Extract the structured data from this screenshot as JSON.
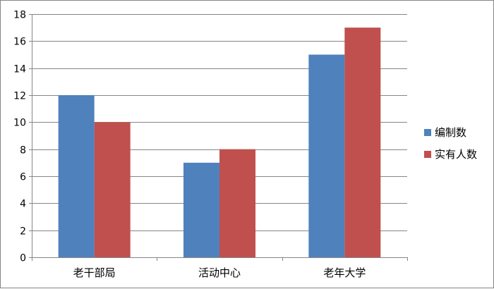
{
  "chart_data": {
    "type": "bar",
    "categories": [
      "老干部局",
      "活动中心",
      "老年大学"
    ],
    "series": [
      {
        "name": "编制数",
        "values": [
          12,
          7,
          15
        ],
        "color": "#4f81bd"
      },
      {
        "name": "实有人数",
        "values": [
          10,
          8,
          17
        ],
        "color": "#c0504d"
      }
    ],
    "y_ticks": [
      "0",
      "2",
      "4",
      "6",
      "8",
      "10",
      "12",
      "14",
      "16",
      "18"
    ],
    "ylim": [
      0,
      18
    ],
    "grid": true,
    "legend_position": "right"
  }
}
